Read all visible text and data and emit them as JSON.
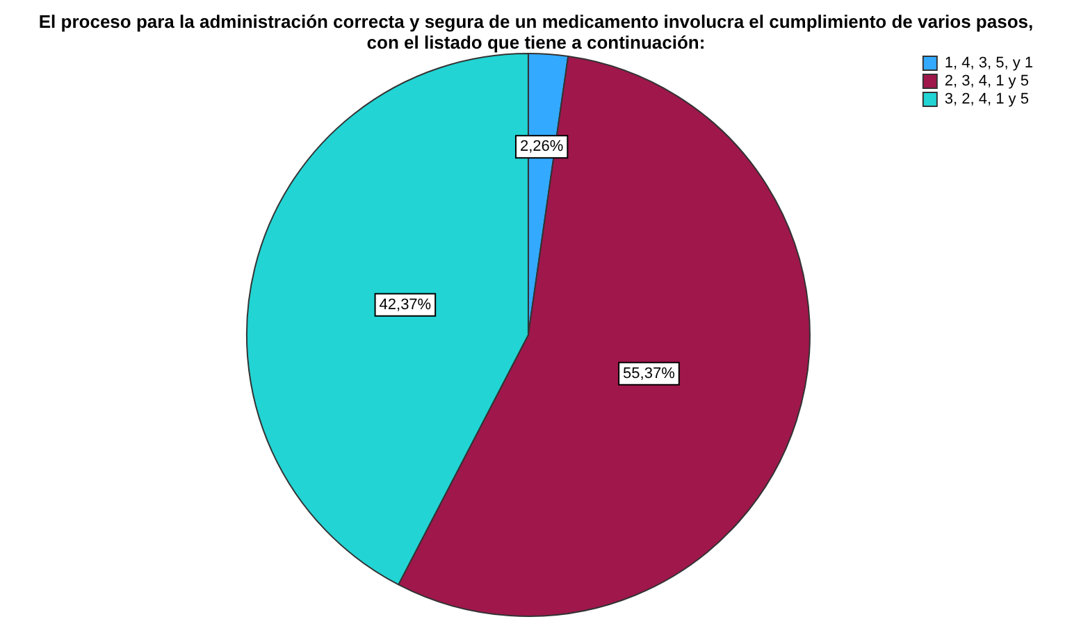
{
  "chart_data": {
    "type": "pie",
    "title": "El proceso para la administración correcta y segura de un medicamento involucra el cumplimiento de varios pasos, con el listado que tiene a continuación:",
    "categories": [
      "1, 4, 3, 5, y 1",
      "2, 3, 4, 1 y 5",
      "3, 2, 4, 1 y 5"
    ],
    "values": [
      2.26,
      55.37,
      42.37
    ],
    "colors": [
      "#33aaff",
      "#a0174c",
      "#22d4d4"
    ],
    "value_labels": [
      "2,26%",
      "55,37%",
      "42,37%"
    ],
    "legend": "top right"
  }
}
